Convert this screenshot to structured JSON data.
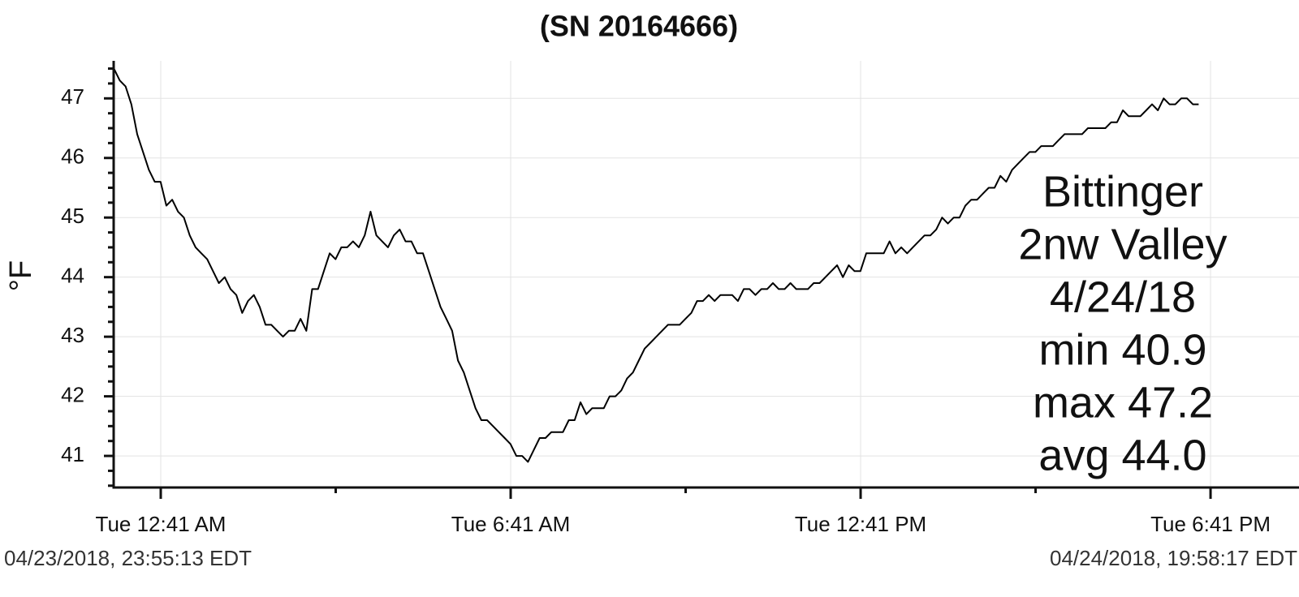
{
  "chart_data": {
    "type": "line",
    "title": "(SN 20164666)",
    "y_label": "°F",
    "annotation": [
      "Bittinger",
      "2nw Valley",
      "4/24/18",
      "min 40.9",
      "max 47.2",
      "avg 44.0"
    ],
    "start_label": "04/23/2018, 23:55:13 EDT",
    "end_label": "04/24/2018, 19:58:17 EDT",
    "color": "#000000",
    "grid": true,
    "xlim": [
      -0.124,
      20.2
    ],
    "xticks": [
      {
        "value": 0.6833,
        "label": "Tue 12:41 AM"
      },
      {
        "value": 6.6833,
        "label": "Tue 6:41 AM"
      },
      {
        "value": 12.6833,
        "label": "Tue 12:41 PM"
      },
      {
        "value": 18.6833,
        "label": "Tue 6:41 PM"
      }
    ],
    "xminorticks": [
      3.6833,
      9.6833,
      15.6833
    ],
    "ylim": [
      40.47,
      47.63
    ],
    "yticks": [
      41,
      42,
      43,
      44,
      45,
      46,
      47
    ],
    "yminorticks": [
      40.5,
      40.75,
      41.25,
      41.5,
      41.75,
      42.25,
      42.5,
      42.75,
      43.25,
      43.5,
      43.75,
      44.25,
      44.5,
      44.75,
      45.25,
      45.5,
      45.75,
      46.25,
      46.5,
      46.75,
      47.25,
      47.5
    ],
    "x": [
      -0.12,
      -0.02,
      0.08,
      0.18,
      0.28,
      0.38,
      0.48,
      0.58,
      0.68,
      0.78,
      0.88,
      0.98,
      1.08,
      1.18,
      1.28,
      1.38,
      1.48,
      1.58,
      1.68,
      1.78,
      1.88,
      1.98,
      2.08,
      2.18,
      2.28,
      2.38,
      2.48,
      2.58,
      2.68,
      2.78,
      2.88,
      2.98,
      3.08,
      3.18,
      3.28,
      3.38,
      3.48,
      3.58,
      3.68,
      3.78,
      3.88,
      3.98,
      4.08,
      4.18,
      4.28,
      4.38,
      4.48,
      4.58,
      4.68,
      4.78,
      4.88,
      4.98,
      5.08,
      5.18,
      5.28,
      5.38,
      5.48,
      5.58,
      5.68,
      5.78,
      5.88,
      5.98,
      6.08,
      6.18,
      6.28,
      6.38,
      6.48,
      6.58,
      6.68,
      6.78,
      6.88,
      6.98,
      7.08,
      7.18,
      7.28,
      7.38,
      7.48,
      7.58,
      7.68,
      7.78,
      7.88,
      7.98,
      8.08,
      8.18,
      8.28,
      8.38,
      8.48,
      8.58,
      8.68,
      8.78,
      8.88,
      8.98,
      9.08,
      9.18,
      9.28,
      9.38,
      9.48,
      9.58,
      9.68,
      9.78,
      9.88,
      9.98,
      10.08,
      10.18,
      10.28,
      10.38,
      10.48,
      10.58,
      10.68,
      10.78,
      10.88,
      10.98,
      11.08,
      11.18,
      11.28,
      11.38,
      11.48,
      11.58,
      11.68,
      11.78,
      11.88,
      11.98,
      12.08,
      12.18,
      12.28,
      12.38,
      12.48,
      12.58,
      12.68,
      12.78,
      12.88,
      12.98,
      13.08,
      13.18,
      13.28,
      13.38,
      13.48,
      13.58,
      13.68,
      13.78,
      13.88,
      13.98,
      14.08,
      14.18,
      14.28,
      14.38,
      14.48,
      14.58,
      14.68,
      14.78,
      14.88,
      14.98,
      15.08,
      15.18,
      15.28,
      15.38,
      15.48,
      15.58,
      15.68,
      15.78,
      15.88,
      15.98,
      16.08,
      16.18,
      16.28,
      16.38,
      16.48,
      16.58,
      16.68,
      16.78,
      16.88,
      16.98,
      17.08,
      17.18,
      17.28,
      17.38,
      17.48,
      17.58,
      17.68,
      17.78,
      17.88,
      17.98,
      18.08,
      18.18,
      18.28,
      18.38,
      18.48
    ],
    "values": [
      47.5,
      47.3,
      47.2,
      46.9,
      46.4,
      46.1,
      45.8,
      45.6,
      45.6,
      45.2,
      45.3,
      45.1,
      45.0,
      44.7,
      44.5,
      44.4,
      44.3,
      44.1,
      43.9,
      44.0,
      43.8,
      43.7,
      43.4,
      43.6,
      43.7,
      43.5,
      43.2,
      43.2,
      43.1,
      43.0,
      43.1,
      43.1,
      43.3,
      43.1,
      43.8,
      43.8,
      44.1,
      44.4,
      44.3,
      44.5,
      44.5,
      44.6,
      44.5,
      44.7,
      45.1,
      44.7,
      44.6,
      44.5,
      44.7,
      44.8,
      44.6,
      44.6,
      44.4,
      44.4,
      44.1,
      43.8,
      43.5,
      43.3,
      43.1,
      42.6,
      42.4,
      42.1,
      41.8,
      41.6,
      41.6,
      41.5,
      41.4,
      41.3,
      41.2,
      41.0,
      41.0,
      40.9,
      41.1,
      41.3,
      41.3,
      41.4,
      41.4,
      41.4,
      41.6,
      41.6,
      41.9,
      41.7,
      41.8,
      41.8,
      41.8,
      42.0,
      42.0,
      42.1,
      42.3,
      42.4,
      42.6,
      42.8,
      42.9,
      43.0,
      43.1,
      43.2,
      43.2,
      43.2,
      43.3,
      43.4,
      43.6,
      43.6,
      43.7,
      43.6,
      43.7,
      43.7,
      43.7,
      43.6,
      43.8,
      43.8,
      43.7,
      43.8,
      43.8,
      43.9,
      43.8,
      43.8,
      43.9,
      43.8,
      43.8,
      43.8,
      43.9,
      43.9,
      44.0,
      44.1,
      44.2,
      44.0,
      44.2,
      44.1,
      44.1,
      44.4,
      44.4,
      44.4,
      44.4,
      44.6,
      44.4,
      44.5,
      44.4,
      44.5,
      44.6,
      44.7,
      44.7,
      44.8,
      45.0,
      44.9,
      45.0,
      45.0,
      45.2,
      45.3,
      45.3,
      45.4,
      45.5,
      45.5,
      45.7,
      45.6,
      45.8,
      45.9,
      46.0,
      46.1,
      46.1,
      46.2,
      46.2,
      46.2,
      46.3,
      46.4,
      46.4,
      46.4,
      46.4,
      46.5,
      46.5,
      46.5,
      46.5,
      46.6,
      46.6,
      46.8,
      46.7,
      46.7,
      46.7,
      46.8,
      46.9,
      46.8,
      47.0,
      46.9,
      46.9,
      47.0,
      47.0,
      46.9,
      46.9
    ]
  }
}
